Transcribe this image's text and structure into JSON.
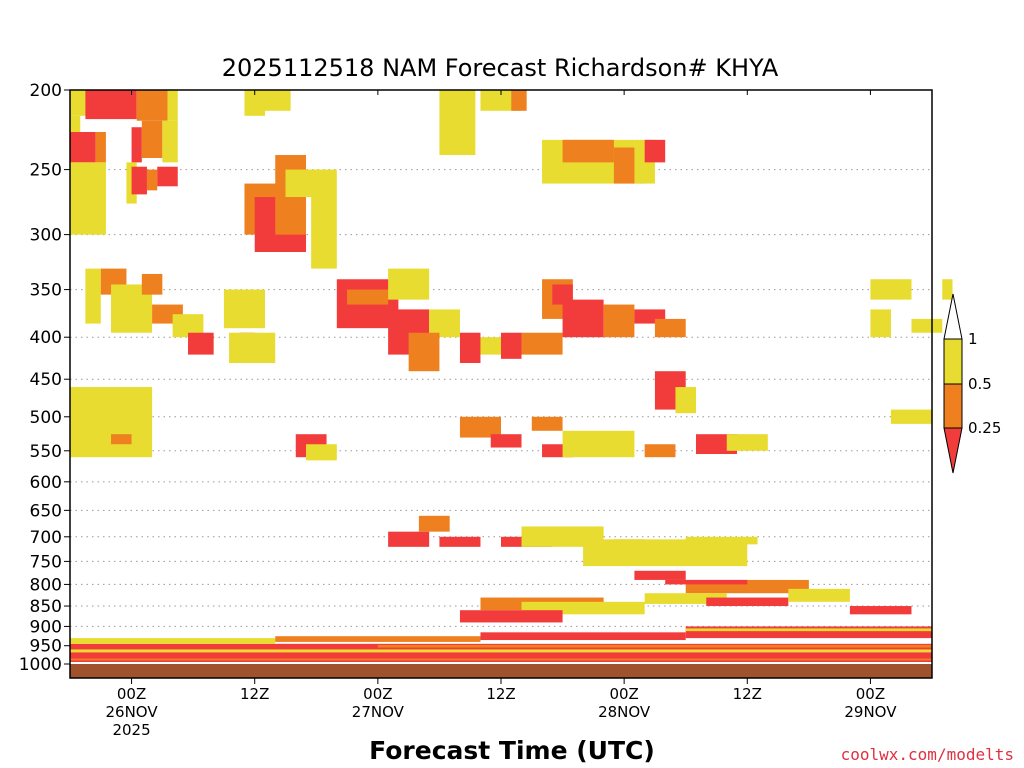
{
  "chart_data": {
    "type": "heatmap",
    "title": "2025112518 NAM Forecast Richardson# KHYA",
    "xlabel": "Forecast Time (UTC)",
    "ylabel": "",
    "y_scale": "log-pressure (hPa, inverted)",
    "ylim": [
      1000,
      200
    ],
    "y_ticks": [
      "200",
      "250",
      "300",
      "350",
      "400",
      "450",
      "500",
      "550",
      "600",
      "650",
      "700",
      "750",
      "800",
      "850",
      "900",
      "950",
      "1000"
    ],
    "x_ticks": [
      {
        "line1": "00Z",
        "line2": "26NOV",
        "line3": "2025",
        "hour": 6
      },
      {
        "line1": "12Z",
        "line2": "",
        "line3": "",
        "hour": 18
      },
      {
        "line1": "00Z",
        "line2": "27NOV",
        "line3": "",
        "hour": 30
      },
      {
        "line1": "12Z",
        "line2": "",
        "line3": "",
        "hour": 42
      },
      {
        "line1": "00Z",
        "line2": "28NOV",
        "line3": "",
        "hour": 54
      },
      {
        "line1": "12Z",
        "line2": "",
        "line3": "",
        "hour": 66
      },
      {
        "line1": "00Z",
        "line2": "29NOV",
        "line3": "",
        "hour": 78
      }
    ],
    "xlim_hours": [
      0,
      84
    ],
    "grid": "dotted horizontal at each pressure tick",
    "legend": {
      "placement": "right",
      "thresholds": [
        "1",
        "0.5",
        "0.25"
      ],
      "bins": [
        {
          "range": "< 0.25",
          "color": "#f23c3c"
        },
        {
          "range": "0.25 - 0.5",
          "color": "#ee8020"
        },
        {
          "range": "0.5 - 1",
          "color": "#e8dc30"
        },
        {
          "range": "> 1",
          "color": "#ffffff"
        }
      ]
    },
    "colors": {
      "low": "#f23c3c",
      "mid": "#ee8020",
      "high": "#e8dc30",
      "ground": "#a0522d"
    },
    "cells_note": "categories: 1 = Ri < 0.25, 2 = 0.25-0.5, 3 = 0.5-1; [hour_start, hour_end, p_top, p_bottom, category]",
    "cells": [
      [
        0,
        3.5,
        200,
        215,
        3
      ],
      [
        1.5,
        6.5,
        200,
        217,
        1
      ],
      [
        6.5,
        9.5,
        200,
        218,
        2
      ],
      [
        9.5,
        10.5,
        200,
        218,
        3
      ],
      [
        0,
        1,
        215,
        235,
        3
      ],
      [
        0,
        2.5,
        225,
        245,
        1
      ],
      [
        2.5,
        3.5,
        225,
        245,
        2
      ],
      [
        6,
        7,
        222,
        245,
        1
      ],
      [
        7,
        9,
        218,
        242,
        2
      ],
      [
        9,
        10.5,
        218,
        245,
        3
      ],
      [
        0,
        3.5,
        245,
        300,
        3
      ],
      [
        2,
        3,
        255,
        300,
        3
      ],
      [
        5.5,
        6.5,
        245,
        275,
        3
      ],
      [
        6,
        7.5,
        248,
        268,
        1
      ],
      [
        7.5,
        8.5,
        250,
        265,
        2
      ],
      [
        8.5,
        10.5,
        248,
        262,
        1
      ],
      [
        1.5,
        3,
        330,
        385,
        3
      ],
      [
        3,
        5.5,
        330,
        355,
        2
      ],
      [
        4,
        8,
        345,
        395,
        3
      ],
      [
        7,
        9,
        335,
        355,
        2
      ],
      [
        8,
        11,
        365,
        385,
        2
      ],
      [
        10,
        13,
        375,
        400,
        3
      ],
      [
        11.5,
        14,
        395,
        420,
        1
      ],
      [
        17,
        21,
        260,
        300,
        2
      ],
      [
        18,
        23,
        270,
        315,
        1
      ],
      [
        20,
        23,
        240,
        300,
        2
      ],
      [
        21,
        24,
        250,
        270,
        3
      ],
      [
        23.5,
        26,
        250,
        330,
        3
      ],
      [
        17,
        19,
        200,
        215,
        3
      ],
      [
        19,
        21.5,
        200,
        212,
        3
      ],
      [
        15,
        19,
        350,
        390,
        3
      ],
      [
        16.5,
        18,
        395,
        420,
        1
      ],
      [
        15.5,
        20,
        395,
        430,
        3
      ],
      [
        26,
        32,
        340,
        390,
        1
      ],
      [
        27,
        31,
        350,
        365,
        2
      ],
      [
        31,
        35,
        370,
        420,
        1
      ],
      [
        31,
        35,
        330,
        360,
        3
      ],
      [
        35,
        38,
        370,
        400,
        3
      ],
      [
        33,
        36,
        395,
        440,
        2
      ],
      [
        36,
        39.5,
        200,
        240,
        3
      ],
      [
        40,
        44,
        200,
        212,
        3
      ],
      [
        43,
        44.5,
        200,
        212,
        2
      ],
      [
        38,
        40,
        395,
        430,
        1
      ],
      [
        40,
        42,
        400,
        420,
        3
      ],
      [
        42,
        44,
        395,
        425,
        1
      ],
      [
        44,
        48,
        395,
        420,
        2
      ],
      [
        46,
        49,
        340,
        380,
        2
      ],
      [
        47,
        49,
        345,
        365,
        1
      ],
      [
        46,
        55,
        230,
        260,
        3
      ],
      [
        48,
        53,
        230,
        245,
        2
      ],
      [
        53,
        56,
        235,
        260,
        2
      ],
      [
        55,
        57,
        230,
        260,
        3
      ],
      [
        56,
        58,
        230,
        245,
        1
      ],
      [
        48,
        52,
        360,
        400,
        1
      ],
      [
        52,
        55,
        365,
        400,
        2
      ],
      [
        55,
        58,
        370,
        385,
        1
      ],
      [
        57,
        60,
        380,
        400,
        2
      ],
      [
        57,
        60,
        440,
        490,
        1
      ],
      [
        59,
        61,
        460,
        495,
        3
      ],
      [
        78,
        82,
        340,
        360,
        3
      ],
      [
        78,
        80,
        370,
        400,
        3
      ],
      [
        82,
        85,
        380,
        395,
        3
      ],
      [
        85,
        86,
        340,
        360,
        3
      ],
      [
        0,
        8,
        460,
        560,
        3
      ],
      [
        2,
        5,
        470,
        490,
        3
      ],
      [
        4,
        6,
        525,
        540,
        2
      ],
      [
        22,
        25,
        525,
        560,
        1
      ],
      [
        23,
        26,
        540,
        565,
        3
      ],
      [
        38,
        42,
        500,
        530,
        2
      ],
      [
        41,
        44,
        525,
        545,
        1
      ],
      [
        45,
        48,
        500,
        520,
        2
      ],
      [
        46,
        49,
        540,
        560,
        1
      ],
      [
        48,
        55,
        520,
        560,
        3
      ],
      [
        56,
        59,
        540,
        560,
        2
      ],
      [
        61,
        65,
        525,
        555,
        1
      ],
      [
        64,
        68,
        525,
        550,
        3
      ],
      [
        80,
        84,
        490,
        510,
        3
      ],
      [
        31,
        35,
        690,
        720,
        1
      ],
      [
        34,
        37,
        660,
        690,
        2
      ],
      [
        36,
        40,
        700,
        720,
        1
      ],
      [
        42,
        47,
        700,
        720,
        1
      ],
      [
        44,
        52,
        680,
        720,
        3
      ],
      [
        53,
        56,
        705,
        745,
        2
      ],
      [
        50,
        66,
        705,
        760,
        3
      ],
      [
        60,
        67,
        700,
        715,
        3
      ],
      [
        55,
        60,
        770,
        790,
        1
      ],
      [
        60,
        72,
        790,
        820,
        2
      ],
      [
        58,
        66,
        790,
        800,
        1
      ],
      [
        40,
        52,
        830,
        860,
        2
      ],
      [
        44,
        56,
        840,
        870,
        3
      ],
      [
        38,
        48,
        860,
        890,
        1
      ],
      [
        56,
        64,
        820,
        845,
        3
      ],
      [
        62,
        70,
        830,
        850,
        1
      ],
      [
        70,
        76,
        810,
        840,
        3
      ],
      [
        76,
        82,
        850,
        870,
        1
      ]
    ],
    "surface_layers_note": "near-surface striping [hour_start, hour_end, p_top, p_bottom, category]",
    "surface_layers": [
      [
        0,
        84,
        945,
        1000,
        1
      ],
      [
        0,
        20,
        930,
        945,
        3
      ],
      [
        20,
        40,
        925,
        940,
        2
      ],
      [
        40,
        60,
        915,
        935,
        1
      ],
      [
        60,
        84,
        900,
        930,
        1
      ],
      [
        0,
        84,
        960,
        968,
        3
      ],
      [
        30,
        84,
        948,
        955,
        2
      ],
      [
        60,
        84,
        905,
        912,
        3
      ],
      [
        0,
        84,
        985,
        990,
        2
      ]
    ],
    "credit": "coolwx.com/modelts"
  }
}
